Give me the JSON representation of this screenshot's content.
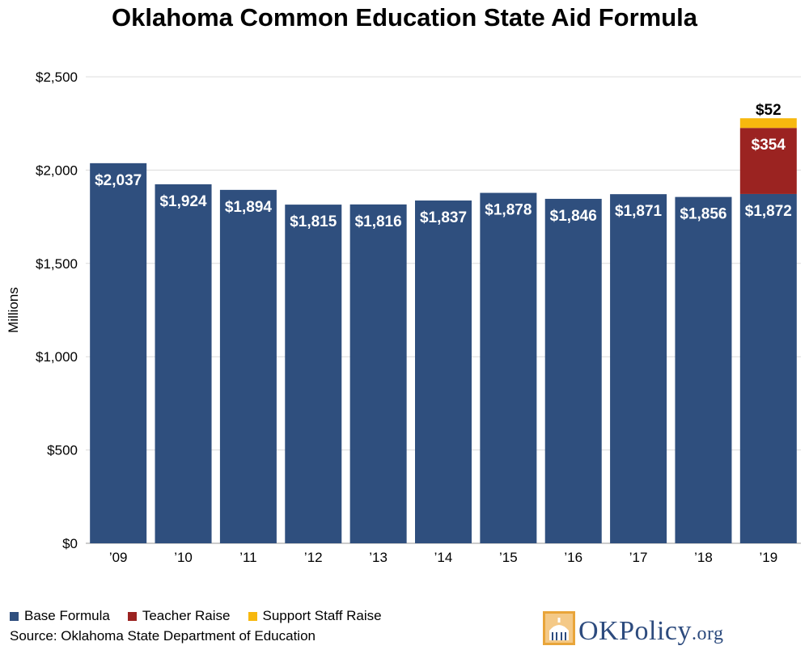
{
  "title": "Oklahoma Common Education State Aid Formula",
  "chart_data": {
    "type": "bar",
    "stacked": true,
    "categories": [
      "’09",
      "’10",
      "’11",
      "’12",
      "’13",
      "’14",
      "’15",
      "’16",
      "’17",
      "’18",
      "’19"
    ],
    "series": [
      {
        "name": "Base Formula",
        "color": "#2f4f7e",
        "values": [
          2037,
          1924,
          1894,
          1815,
          1816,
          1837,
          1878,
          1846,
          1871,
          1856,
          1872
        ],
        "labels": [
          "$2,037",
          "$1,924",
          "$1,894",
          "$1,815",
          "$1,816",
          "$1,837",
          "$1,878",
          "$1,846",
          "$1,871",
          "$1,856",
          "$1,872"
        ]
      },
      {
        "name": "Teacher Raise",
        "color": "#9b2321",
        "values": [
          0,
          0,
          0,
          0,
          0,
          0,
          0,
          0,
          0,
          0,
          354
        ],
        "labels": [
          "",
          "",
          "",
          "",
          "",
          "",
          "",
          "",
          "",
          "",
          "$354"
        ]
      },
      {
        "name": "Support Staff Raise",
        "color": "#f7b80e",
        "values": [
          0,
          0,
          0,
          0,
          0,
          0,
          0,
          0,
          0,
          0,
          52
        ],
        "labels": [
          "",
          "",
          "",
          "",
          "",
          "",
          "",
          "",
          "",
          "",
          "$52"
        ]
      }
    ],
    "ylabel": "Millions",
    "xlabel": "",
    "ylim": [
      0,
      2500
    ],
    "yticks": [
      0,
      500,
      1000,
      1500,
      2000,
      2500
    ],
    "ytick_labels": [
      "$0",
      "$500",
      "$1,000",
      "$1,500",
      "$2,000",
      "$2,500"
    ],
    "grid": true,
    "legend_position": "bottom-left"
  },
  "source": "Source: Oklahoma State Department of Education",
  "logo": {
    "text_main": "OKPolicy",
    "text_suffix": ".org"
  }
}
